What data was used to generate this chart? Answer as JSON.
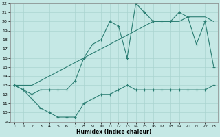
{
  "title": "",
  "xlabel": "Humidex (Indice chaleur)",
  "bg_color": "#c5e8e5",
  "grid_color": "#aad4d0",
  "line_color": "#2a7d72",
  "xlim": [
    -0.5,
    23.5
  ],
  "ylim": [
    9,
    22
  ],
  "xticks": [
    0,
    1,
    2,
    3,
    4,
    5,
    6,
    7,
    8,
    9,
    10,
    11,
    12,
    13,
    14,
    15,
    16,
    17,
    18,
    19,
    20,
    21,
    22,
    23
  ],
  "yticks": [
    9,
    10,
    11,
    12,
    13,
    14,
    15,
    16,
    17,
    18,
    19,
    20,
    21,
    22
  ],
  "line1_x": [
    0,
    1,
    2,
    3,
    4,
    5,
    6,
    7,
    8,
    9,
    10,
    11,
    12,
    13,
    14,
    15,
    16,
    17,
    18,
    19,
    20,
    21,
    22,
    23
  ],
  "line1_y": [
    13,
    12.5,
    11.5,
    10.5,
    10,
    9.5,
    9.5,
    9.5,
    11,
    11.5,
    12,
    12,
    12.5,
    13,
    12.5,
    12.5,
    12.5,
    12.5,
    12.5,
    12.5,
    12.5,
    12.5,
    12.5,
    13
  ],
  "line2_x": [
    0,
    1,
    2,
    3,
    4,
    5,
    6,
    7,
    8,
    9,
    10,
    11,
    12,
    13,
    14,
    15,
    16,
    17,
    18,
    19,
    20,
    21,
    22,
    23
  ],
  "line2_y": [
    13,
    12.5,
    12,
    12.5,
    12.5,
    12.5,
    12.5,
    13.5,
    16,
    17.5,
    18,
    20,
    19.5,
    16,
    22,
    21,
    20,
    20,
    20,
    21,
    20.5,
    17.5,
    20,
    15
  ],
  "line3_x": [
    0,
    1,
    2,
    3,
    4,
    5,
    6,
    7,
    8,
    9,
    10,
    11,
    12,
    13,
    14,
    15,
    16,
    17,
    18,
    19,
    20,
    21,
    22,
    23
  ],
  "line3_y": [
    13,
    13,
    13,
    13.5,
    14,
    14.5,
    15,
    15.5,
    16,
    16.5,
    17,
    17.5,
    18,
    18.5,
    19,
    19.5,
    20,
    20,
    20,
    20,
    20.5,
    20.5,
    20.5,
    20
  ]
}
